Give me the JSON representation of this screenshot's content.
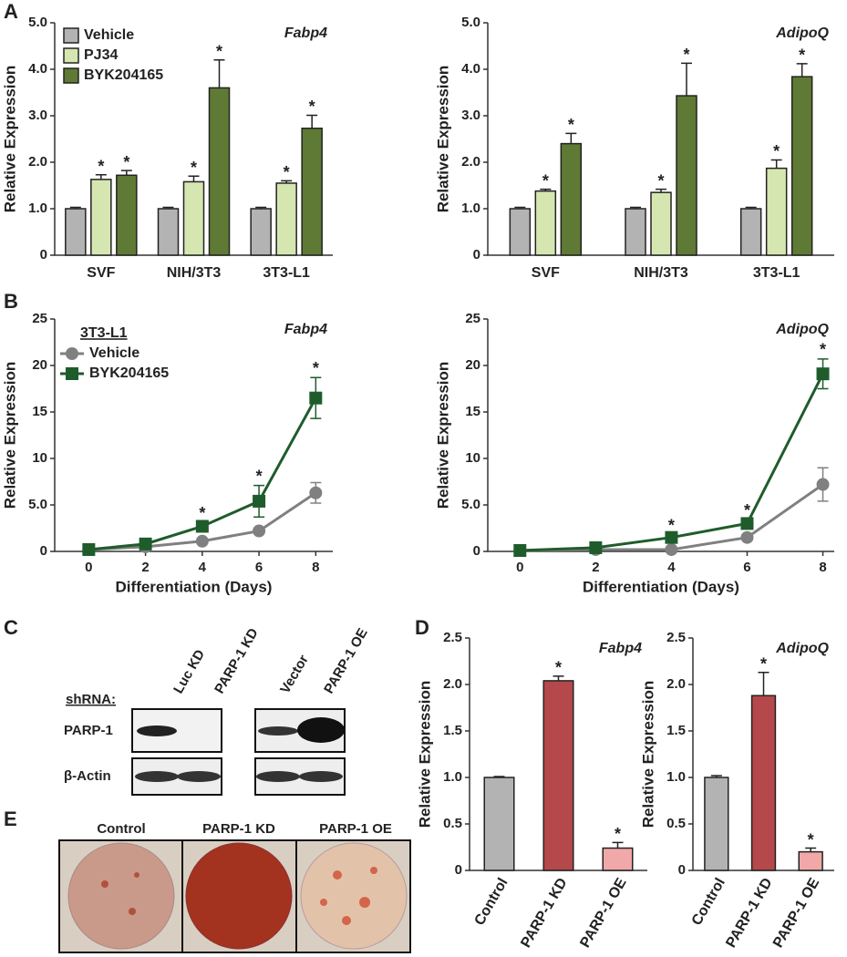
{
  "panel_labels": [
    "A",
    "B",
    "C",
    "D",
    "E"
  ],
  "chart_data": [
    {
      "type": "bar",
      "title": "Fabp4",
      "ylabel": "Relative Expression",
      "categories": [
        "SVF",
        "NIH/3T3",
        "3T3-L1"
      ],
      "series": [
        {
          "name": "Vehicle",
          "color": "#b3b3b3",
          "values": [
            1.0,
            1.0,
            1.0
          ],
          "errors": [
            0.03,
            0.03,
            0.03
          ],
          "annotations": [
            null,
            null,
            null
          ]
        },
        {
          "name": "PJ34",
          "color": "#d6e6b0",
          "values": [
            1.63,
            1.58,
            1.55
          ],
          "errors": [
            0.1,
            0.12,
            0.05
          ],
          "annotations": [
            "*",
            "*",
            "*"
          ]
        },
        {
          "name": "BYK204165",
          "color": "#5f7a34",
          "values": [
            1.72,
            3.6,
            2.73
          ],
          "errors": [
            0.1,
            0.6,
            0.28
          ],
          "annotations": [
            "*",
            "*",
            "*"
          ]
        }
      ],
      "ylim": [
        0,
        5
      ],
      "yticks": [
        0,
        {
          "value": 1,
          "label": "1.0"
        },
        {
          "value": 2,
          "label": "2.0"
        },
        {
          "value": 3,
          "label": "3.0"
        },
        {
          "value": 4,
          "label": "4.0"
        },
        {
          "value": 5,
          "label": "5.0"
        }
      ],
      "legend": "upper left"
    },
    {
      "type": "bar",
      "title": "AdipoQ",
      "ylabel": "Relative Expression",
      "categories": [
        "SVF",
        "NIH/3T3",
        "3T3-L1"
      ],
      "series": [
        {
          "name": "Vehicle",
          "color": "#b3b3b3",
          "values": [
            1.0,
            1.0,
            1.0
          ],
          "errors": [
            0.03,
            0.03,
            0.03
          ],
          "annotations": [
            null,
            null,
            null
          ]
        },
        {
          "name": "PJ34",
          "color": "#d6e6b0",
          "values": [
            1.38,
            1.35,
            1.87
          ],
          "errors": [
            0.04,
            0.07,
            0.18
          ],
          "annotations": [
            "*",
            "*",
            "*"
          ]
        },
        {
          "name": "BYK204165",
          "color": "#5f7a34",
          "values": [
            2.4,
            3.43,
            3.84
          ],
          "errors": [
            0.22,
            0.7,
            0.28
          ],
          "annotations": [
            "*",
            "*",
            "*"
          ]
        }
      ],
      "ylim": [
        0,
        5
      ],
      "yticks": [
        0,
        {
          "value": 1,
          "label": "1.0"
        },
        {
          "value": 2,
          "label": "2.0"
        },
        {
          "value": 3,
          "label": "3.0"
        },
        {
          "value": 4,
          "label": "4.0"
        },
        {
          "value": 5,
          "label": "5.0"
        }
      ]
    },
    {
      "type": "line",
      "title": "Fabp4",
      "ylabel": "Relative Expression",
      "xlabel": "Differentiation (Days)",
      "legend_title": "3T3-L1",
      "legend": "upper left",
      "x": [
        0,
        2,
        4,
        6,
        8
      ],
      "series": [
        {
          "name": "Vehicle",
          "color": "#808080",
          "marker": "circle",
          "values": [
            0.2,
            0.5,
            1.1,
            2.2,
            6.3
          ],
          "errors": [
            0.05,
            0.1,
            0.2,
            0.3,
            1.1
          ],
          "annotations": [
            null,
            null,
            null,
            null,
            null
          ]
        },
        {
          "name": "BYK204165",
          "color": "#1f5c2b",
          "marker": "square",
          "values": [
            0.2,
            0.8,
            2.7,
            5.4,
            16.5
          ],
          "errors": [
            0.05,
            0.2,
            0.4,
            1.7,
            2.2
          ],
          "annotations": [
            null,
            null,
            "*",
            "*",
            "*"
          ]
        }
      ],
      "xlim": [
        -1.2,
        8.6
      ],
      "xticks": [
        0,
        2,
        4,
        6,
        8
      ],
      "ylim": [
        0,
        25
      ],
      "yticks": [
        0,
        {
          "value": 5,
          "label": "5.0"
        },
        10,
        15,
        20,
        25
      ]
    },
    {
      "type": "line",
      "title": "AdipoQ",
      "ylabel": "Relative Expression",
      "xlabel": "Differentiation (Days)",
      "x": [
        0,
        2,
        4,
        6,
        8
      ],
      "series": [
        {
          "name": "Vehicle",
          "color": "#808080",
          "marker": "circle",
          "values": [
            0.1,
            0.2,
            0.2,
            1.5,
            7.2
          ],
          "errors": [
            0.05,
            0.05,
            0.1,
            0.3,
            1.8
          ],
          "annotations": [
            null,
            null,
            null,
            null,
            null
          ]
        },
        {
          "name": "BYK204165",
          "color": "#1f5c2b",
          "marker": "square",
          "values": [
            0.1,
            0.4,
            1.5,
            3.0,
            19.1
          ],
          "errors": [
            0.05,
            0.1,
            0.3,
            0.4,
            1.6
          ],
          "annotations": [
            null,
            null,
            "*",
            "*",
            "*"
          ]
        }
      ],
      "xlim": [
        -0.85,
        8.3
      ],
      "xticks": [
        0,
        2,
        4,
        6,
        8
      ],
      "ylim": [
        0,
        25
      ],
      "yticks": [
        0,
        {
          "value": 5,
          "label": "5.0"
        },
        10,
        15,
        20,
        25
      ]
    },
    {
      "type": "bar",
      "title": "Fabp4",
      "ylabel": "Relative Expression",
      "rotate_labels": true,
      "categories": [
        "Control",
        "PARP-1 KD",
        "PARP-1 OE"
      ],
      "values": [
        1.0,
        2.04,
        0.24
      ],
      "errors": [
        0.01,
        0.05,
        0.06
      ],
      "annotations": [
        null,
        "*",
        "*"
      ],
      "colors": [
        "#b3b3b3",
        "#b5484a",
        "#f0a8a8"
      ],
      "ylim": [
        0,
        2.5
      ],
      "yticks": [
        0,
        0.5,
        {
          "value": 1,
          "label": "1.0"
        },
        1.5,
        {
          "value": 2,
          "label": "2.0"
        },
        2.5
      ]
    },
    {
      "type": "bar",
      "title": "AdipoQ",
      "ylabel": "Relative Expression",
      "rotate_labels": true,
      "categories": [
        "Control",
        "PARP-1 KD",
        "PARP-1 OE"
      ],
      "values": [
        1.0,
        1.88,
        0.2
      ],
      "errors": [
        0.02,
        0.25,
        0.04
      ],
      "annotations": [
        null,
        "*",
        "*"
      ],
      "colors": [
        "#b3b3b3",
        "#b5484a",
        "#f0a8a8"
      ],
      "ylim": [
        0,
        2.5
      ],
      "yticks": [
        0,
        0.5,
        {
          "value": 1,
          "label": "1.0"
        },
        1.5,
        {
          "value": 2,
          "label": "2.0"
        },
        2.5
      ]
    }
  ],
  "blot": {
    "row_label": "shRNA:",
    "lanes": [
      "Luc KD",
      "PARP-1 KD",
      "Vector",
      "PARP-1 OE"
    ],
    "proteins": [
      "PARP-1",
      "β-Actin"
    ]
  },
  "dishes": {
    "labels": [
      "Control",
      "PARP-1 KD",
      "PARP-1 OE"
    ]
  }
}
